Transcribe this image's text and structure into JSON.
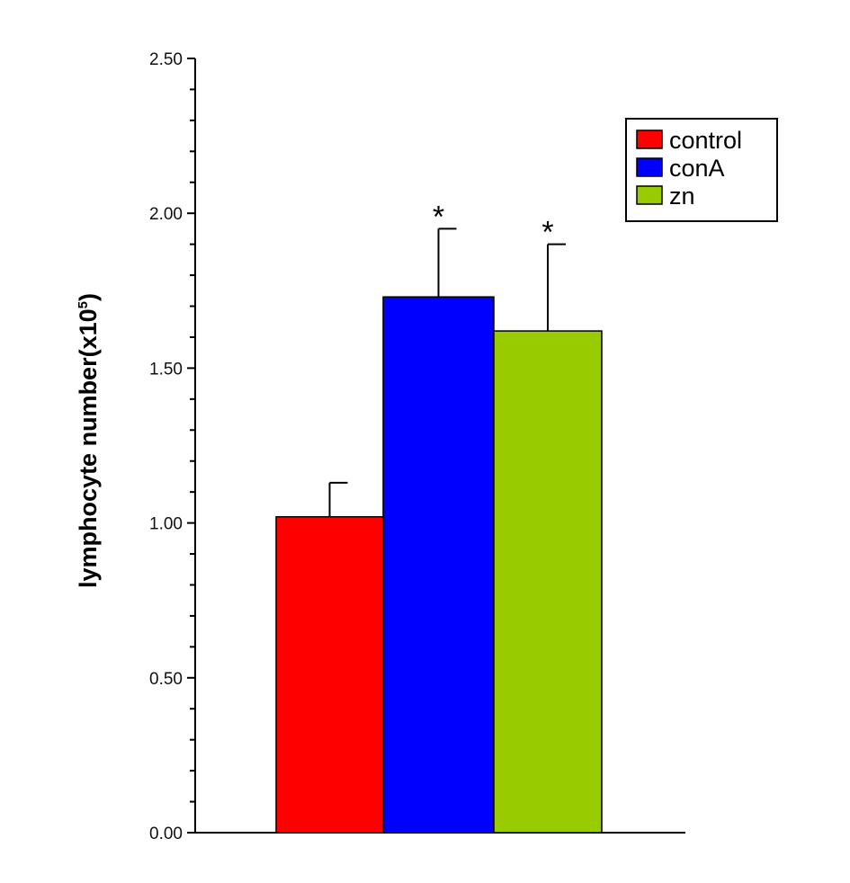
{
  "chart_data": {
    "type": "bar",
    "title": "",
    "xlabel": "",
    "ylabel": "lymphocyte number(x10",
    "ylabel_superscript": "5",
    "ylabel_close": ")",
    "ylim": [
      0,
      2.5
    ],
    "yticks": [
      "0.00",
      "0.50",
      "1.00",
      "1.50",
      "2.00",
      "2.50"
    ],
    "minor_tick_step": 0.1,
    "grid": false,
    "legend_position": "top-right",
    "series": [
      {
        "name": "control",
        "value": 1.02,
        "error": 0.11,
        "color": "#ff0000",
        "annotation": ""
      },
      {
        "name": "conA",
        "value": 1.73,
        "error": 0.22,
        "color": "#0000ff",
        "annotation": "*"
      },
      {
        "name": "zn",
        "value": 1.62,
        "error": 0.28,
        "color": "#99cc00",
        "annotation": "*"
      }
    ]
  }
}
